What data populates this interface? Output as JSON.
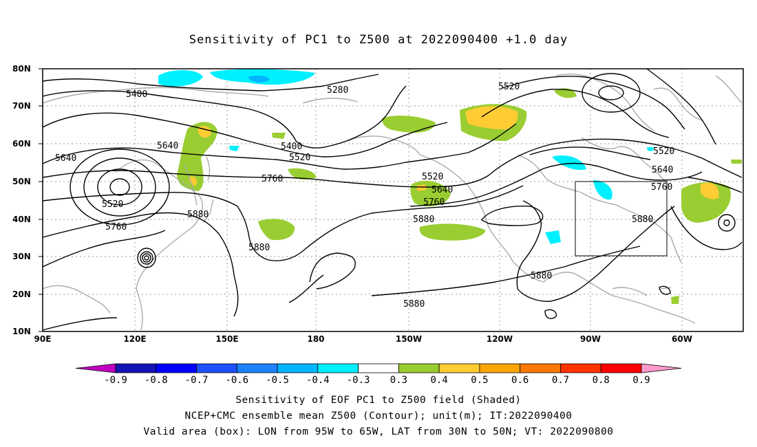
{
  "title": "Sensitivity of PC1 to Z500 at 2022090400 +1.0 day",
  "lat_labels": [
    "80N",
    "70N",
    "60N",
    "50N",
    "40N",
    "30N",
    "20N",
    "10N"
  ],
  "lon_labels": [
    "90E",
    "120E",
    "150E",
    "180",
    "150W",
    "120W",
    "90W",
    "60W"
  ],
  "contour_labels": [
    {
      "text": "5400",
      "id": "a"
    },
    {
      "text": "5280",
      "id": "b"
    },
    {
      "text": "5520",
      "id": "c"
    },
    {
      "text": "5640",
      "id": "d"
    },
    {
      "text": "5640",
      "id": "e"
    },
    {
      "text": "5400",
      "id": "f"
    },
    {
      "text": "5520",
      "id": "g"
    },
    {
      "text": "5760",
      "id": "h"
    },
    {
      "text": "5520",
      "id": "i"
    },
    {
      "text": "5880",
      "id": "j"
    },
    {
      "text": "5760",
      "id": "k"
    },
    {
      "text": "5880",
      "id": "l"
    },
    {
      "text": "5520",
      "id": "m"
    },
    {
      "text": "5640",
      "id": "n"
    },
    {
      "text": "5760",
      "id": "o"
    },
    {
      "text": "5880",
      "id": "p"
    },
    {
      "text": "5880",
      "id": "q"
    },
    {
      "text": "5880",
      "id": "r"
    },
    {
      "text": "5520",
      "id": "s"
    },
    {
      "text": "5640",
      "id": "t"
    },
    {
      "text": "5760",
      "id": "u"
    },
    {
      "text": "5880",
      "id": "v"
    }
  ],
  "valid_box": {
    "lon_from": "95W",
    "lon_to": "65W",
    "lat_from": "30N",
    "lat_to": "50N"
  },
  "colorbar": {
    "labels": [
      "-0.9",
      "-0.8",
      "-0.7",
      "-0.6",
      "-0.5",
      "-0.4",
      "-0.3",
      "0.3",
      "0.4",
      "0.5",
      "0.6",
      "0.7",
      "0.8",
      "0.9"
    ],
    "colors": [
      "#c000c0",
      "#1414b4",
      "#0000ff",
      "#1e50ff",
      "#1e82ff",
      "#00b4ff",
      "#00f0ff",
      "#ffffff",
      "#9acd32",
      "#ffcc33",
      "#ffa500",
      "#ff7800",
      "#ff3200",
      "#ff0000",
      "#ff99cc"
    ]
  },
  "captions": {
    "line1": "Sensitivity of EOF PC1 to Z500 field (Shaded)",
    "line2": "NCEP+CMC ensemble mean Z500 (Contour); unit(m); IT:2022090400",
    "line3": "Valid area (box): LON from 95W to 65W, LAT from 30N to 50N; VT: 2022090800"
  }
}
